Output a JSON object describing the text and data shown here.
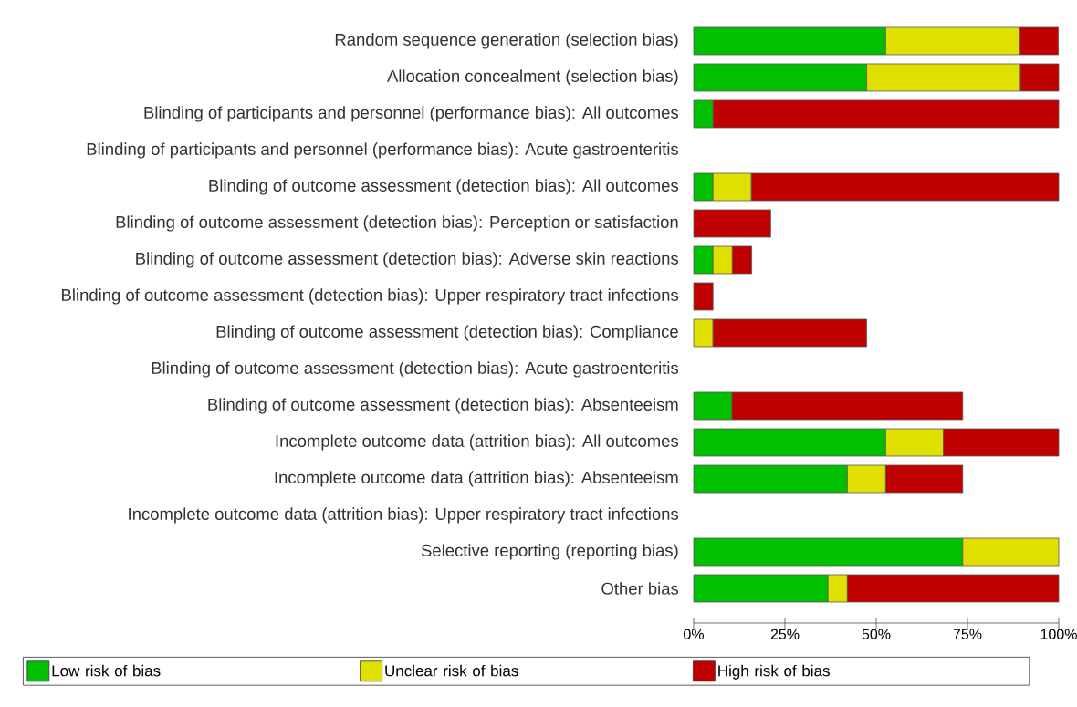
{
  "chart_data": {
    "type": "bar",
    "orientation": "horizontal",
    "stacked": true,
    "legend": "bottom",
    "grid": false,
    "categories": [
      "Random sequence generation (selection bias)",
      "Allocation concealment (selection bias)",
      "Blinding of participants and personnel (performance bias): All outcomes",
      "Blinding of participants and personnel (performance bias): Acute gastroenteritis",
      "Blinding of outcome assessment (detection bias): All outcomes",
      "Blinding of outcome assessment (detection bias): Perception or satisfaction",
      "Blinding of outcome assessment (detection bias): Adverse skin reactions",
      "Blinding of outcome assessment (detection bias): Upper respiratory tract infections",
      "Blinding of outcome assessment (detection bias): Compliance",
      "Blinding of outcome assessment (detection bias): Acute gastroenteritis",
      "Blinding of outcome assessment (detection bias): Absenteeism",
      "Incomplete outcome data (attrition bias): All outcomes",
      "Incomplete outcome data (attrition bias): Absenteeism",
      "Incomplete outcome data (attrition bias): Upper respiratory tract infections",
      "Selective reporting (reporting bias)",
      "Other bias"
    ],
    "series": [
      {
        "name": "Low risk of bias",
        "color": "#00c000",
        "values": [
          52.6,
          47.4,
          5.3,
          null,
          5.3,
          null,
          5.3,
          null,
          null,
          null,
          10.5,
          52.6,
          42.1,
          null,
          73.7,
          36.8
        ]
      },
      {
        "name": "Unclear risk of bias",
        "color": "#e0e000",
        "values": [
          36.8,
          42.1,
          null,
          null,
          10.5,
          null,
          5.3,
          null,
          5.3,
          null,
          null,
          15.8,
          10.5,
          null,
          26.3,
          5.3
        ]
      },
      {
        "name": "High risk of bias",
        "color": "#c00000",
        "values": [
          10.5,
          10.5,
          94.7,
          null,
          84.2,
          21.1,
          5.3,
          5.3,
          42.1,
          null,
          63.2,
          31.6,
          21.1,
          null,
          null,
          57.9
        ]
      }
    ],
    "xlim": [
      0,
      100
    ],
    "xticks": [
      {
        "value": 0,
        "label": "0%"
      },
      {
        "value": 25,
        "label": "25%"
      },
      {
        "value": 50,
        "label": "50%"
      },
      {
        "value": 75,
        "label": "75%"
      },
      {
        "value": 100,
        "label": "100%"
      }
    ]
  }
}
